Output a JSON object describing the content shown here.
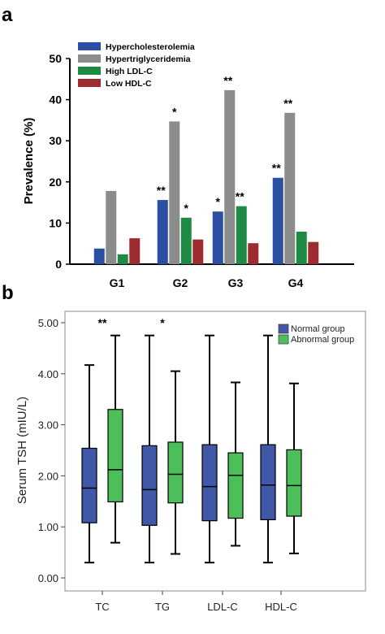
{
  "panels": {
    "a": "a",
    "b": "b"
  },
  "chart_data": [
    {
      "type": "bar",
      "categories": [
        "G1",
        "G2",
        "G3",
        "G4"
      ],
      "ylabel": "Prevalence (%)",
      "ylim": [
        0,
        50
      ],
      "yticks": [
        0,
        10,
        20,
        30,
        40,
        50
      ],
      "legend_position": "top-left",
      "series": [
        {
          "name": "Hypercholesterolemia",
          "color": "#2B4FA3",
          "values": [
            3.8,
            15.6,
            12.8,
            21.0
          ],
          "significance": [
            "",
            "**",
            "*",
            "**"
          ]
        },
        {
          "name": "Hypertriglyceridemia",
          "color": "#8C8C8C",
          "values": [
            17.8,
            34.7,
            42.3,
            36.8
          ],
          "significance": [
            "",
            "*",
            "**",
            "**"
          ]
        },
        {
          "name": "High LDL-C",
          "color": "#1E8A43",
          "values": [
            2.4,
            11.3,
            14.1,
            7.9
          ],
          "significance": [
            "",
            "*",
            "**",
            ""
          ]
        },
        {
          "name": "Low HDL-C",
          "color": "#9E2B2F",
          "values": [
            6.3,
            6.0,
            5.1,
            5.4
          ],
          "significance": [
            "",
            "",
            "",
            ""
          ]
        }
      ]
    },
    {
      "type": "box",
      "categories": [
        "TC",
        "TG",
        "LDL-C",
        "HDL-C"
      ],
      "ylabel": "Serum TSH (mIU/L)",
      "ylim": [
        0,
        5
      ],
      "yticks": [
        "0.00",
        "1.00",
        "2.00",
        "3.00",
        "4.00",
        "5.00"
      ],
      "legend_position": "top-right",
      "significance": [
        "**",
        "*",
        "",
        ""
      ],
      "series": [
        {
          "name": "Normal group",
          "color": "#4157A8",
          "boxes": [
            {
              "min": 0.3,
              "q1": 1.08,
              "median": 1.76,
              "q3": 2.54,
              "max": 4.17
            },
            {
              "min": 0.3,
              "q1": 1.03,
              "median": 1.73,
              "q3": 2.59,
              "max": 4.75
            },
            {
              "min": 0.3,
              "q1": 1.12,
              "median": 1.79,
              "q3": 2.61,
              "max": 4.75
            },
            {
              "min": 0.3,
              "q1": 1.14,
              "median": 1.82,
              "q3": 2.61,
              "max": 4.75
            }
          ]
        },
        {
          "name": "Abnormal group",
          "color": "#4CBF5A",
          "boxes": [
            {
              "min": 0.69,
              "q1": 1.49,
              "median": 2.12,
              "q3": 3.3,
              "max": 4.75
            },
            {
              "min": 0.47,
              "q1": 1.47,
              "median": 2.03,
              "q3": 2.66,
              "max": 4.05
            },
            {
              "min": 0.63,
              "q1": 1.17,
              "median": 2.01,
              "q3": 2.45,
              "max": 3.83
            },
            {
              "min": 0.48,
              "q1": 1.21,
              "median": 1.81,
              "q3": 2.51,
              "max": 3.81
            }
          ]
        }
      ]
    }
  ]
}
